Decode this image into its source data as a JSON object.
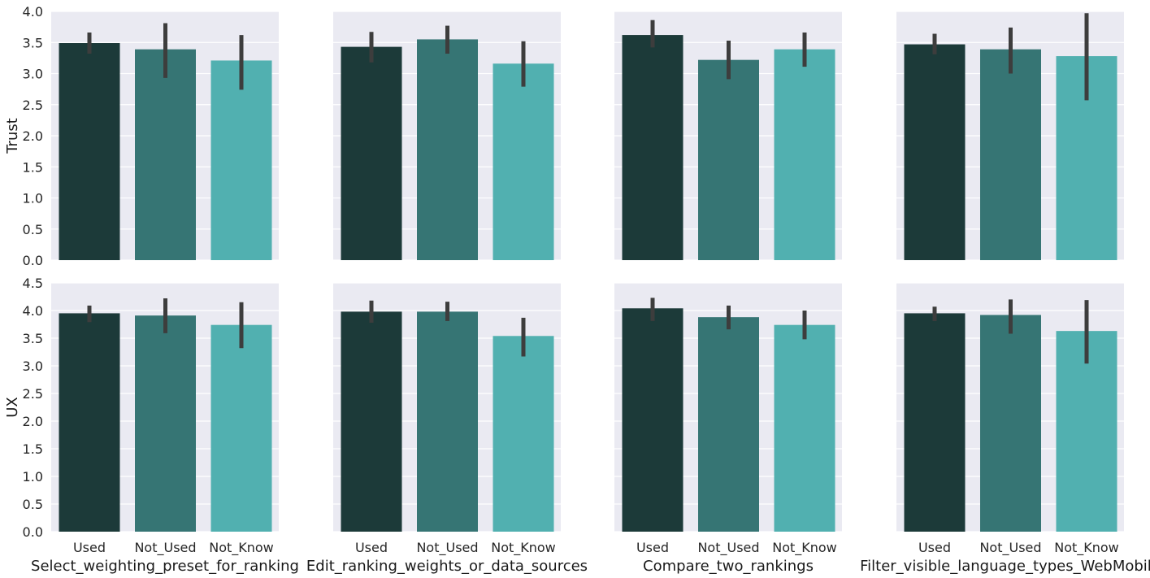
{
  "colors": {
    "panel_bg": "#EAEAF2",
    "grid": "#FFFFFF",
    "error_bar": "#3D3D3D",
    "bar_palette": [
      "#1C3A39",
      "#367574",
      "#51B0B0"
    ]
  },
  "chart_data": {
    "type": "bar",
    "layout": "facet-grid-2x4",
    "categories": [
      "Used",
      "Not_Used",
      "Not_Know"
    ],
    "rows": [
      {
        "ylabel": "Trust",
        "ylim": [
          0,
          4.0
        ],
        "yticks": [
          "0.0",
          "0.5",
          "1.0",
          "1.5",
          "2.0",
          "2.5",
          "3.0",
          "3.5",
          "4.0"
        ]
      },
      {
        "ylabel": "UX",
        "ylim": [
          0,
          4.5
        ],
        "yticks": [
          "0.0",
          "0.5",
          "1.0",
          "1.5",
          "2.0",
          "2.5",
          "3.0",
          "3.5",
          "4.0",
          "4.5"
        ]
      }
    ],
    "columns": [
      {
        "xlabel": "Select_weighting_preset_for_ranking",
        "trust": {
          "values": [
            3.49,
            3.39,
            3.21
          ],
          "ci_low": [
            3.32,
            2.93,
            2.74
          ],
          "ci_high": [
            3.66,
            3.81,
            3.62
          ]
        },
        "ux": {
          "values": [
            3.95,
            3.91,
            3.74
          ],
          "ci_low": [
            3.79,
            3.59,
            3.32
          ],
          "ci_high": [
            4.09,
            4.22,
            4.15
          ]
        }
      },
      {
        "xlabel": "Edit_ranking_weights_or_data_sources",
        "trust": {
          "values": [
            3.43,
            3.55,
            3.16
          ],
          "ci_low": [
            3.18,
            3.32,
            2.79
          ],
          "ci_high": [
            3.67,
            3.77,
            3.52
          ]
        },
        "ux": {
          "values": [
            3.98,
            3.98,
            3.54
          ],
          "ci_low": [
            3.78,
            3.81,
            3.17
          ],
          "ci_high": [
            4.18,
            4.16,
            3.87
          ]
        }
      },
      {
        "xlabel": "Compare_two_rankings",
        "trust": {
          "values": [
            3.62,
            3.22,
            3.39
          ],
          "ci_low": [
            3.42,
            2.91,
            3.11
          ],
          "ci_high": [
            3.86,
            3.53,
            3.66
          ]
        },
        "ux": {
          "values": [
            4.04,
            3.88,
            3.74
          ],
          "ci_low": [
            3.81,
            3.66,
            3.48
          ],
          "ci_high": [
            4.23,
            4.09,
            4.0
          ]
        }
      },
      {
        "xlabel": "Filter_visible_language_types_WebMobile",
        "trust": {
          "values": [
            3.47,
            3.39,
            3.28
          ],
          "ci_low": [
            3.31,
            3.0,
            2.57
          ],
          "ci_high": [
            3.64,
            3.74,
            3.97
          ]
        },
        "ux": {
          "values": [
            3.95,
            3.92,
            3.63
          ],
          "ci_low": [
            3.81,
            3.58,
            3.04
          ],
          "ci_high": [
            4.07,
            4.2,
            4.19
          ]
        }
      }
    ]
  }
}
